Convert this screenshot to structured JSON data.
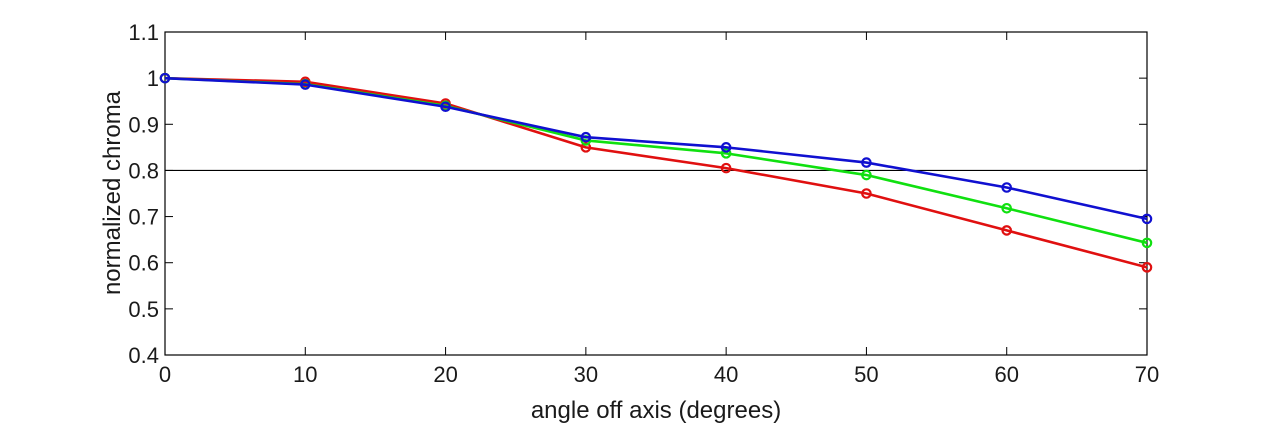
{
  "chart_data": {
    "type": "line",
    "xlabel": "angle off axis (degrees)",
    "ylabel": "normalized chroma",
    "xlim": [
      0,
      70
    ],
    "ylim": [
      0.4,
      1.1
    ],
    "x_ticks": [
      0,
      10,
      20,
      30,
      40,
      50,
      60,
      70
    ],
    "y_ticks": [
      0.4,
      0.5,
      0.6,
      0.7,
      0.8,
      0.9,
      1,
      1.1
    ],
    "x_tick_labels": [
      "0",
      "10",
      "20",
      "30",
      "40",
      "50",
      "60",
      "70"
    ],
    "y_tick_labels": [
      "0.4",
      "0.5",
      "0.6",
      "0.7",
      "0.8",
      "0.9",
      "1",
      "1.1"
    ],
    "grid": false,
    "reference_line": {
      "y": 0.8,
      "color": "#000000"
    },
    "x": [
      0,
      10,
      20,
      30,
      40,
      50,
      60,
      70
    ],
    "series": [
      {
        "color": "#e01010",
        "values": [
          1.0,
          0.992,
          0.945,
          0.85,
          0.805,
          0.75,
          0.67,
          0.59
        ]
      },
      {
        "color": "#10e010",
        "values": [
          1.0,
          0.987,
          0.94,
          0.865,
          0.837,
          0.79,
          0.718,
          0.643
        ]
      },
      {
        "color": "#1010d0",
        "values": [
          1.0,
          0.986,
          0.938,
          0.872,
          0.85,
          0.817,
          0.763,
          0.695
        ]
      }
    ]
  }
}
